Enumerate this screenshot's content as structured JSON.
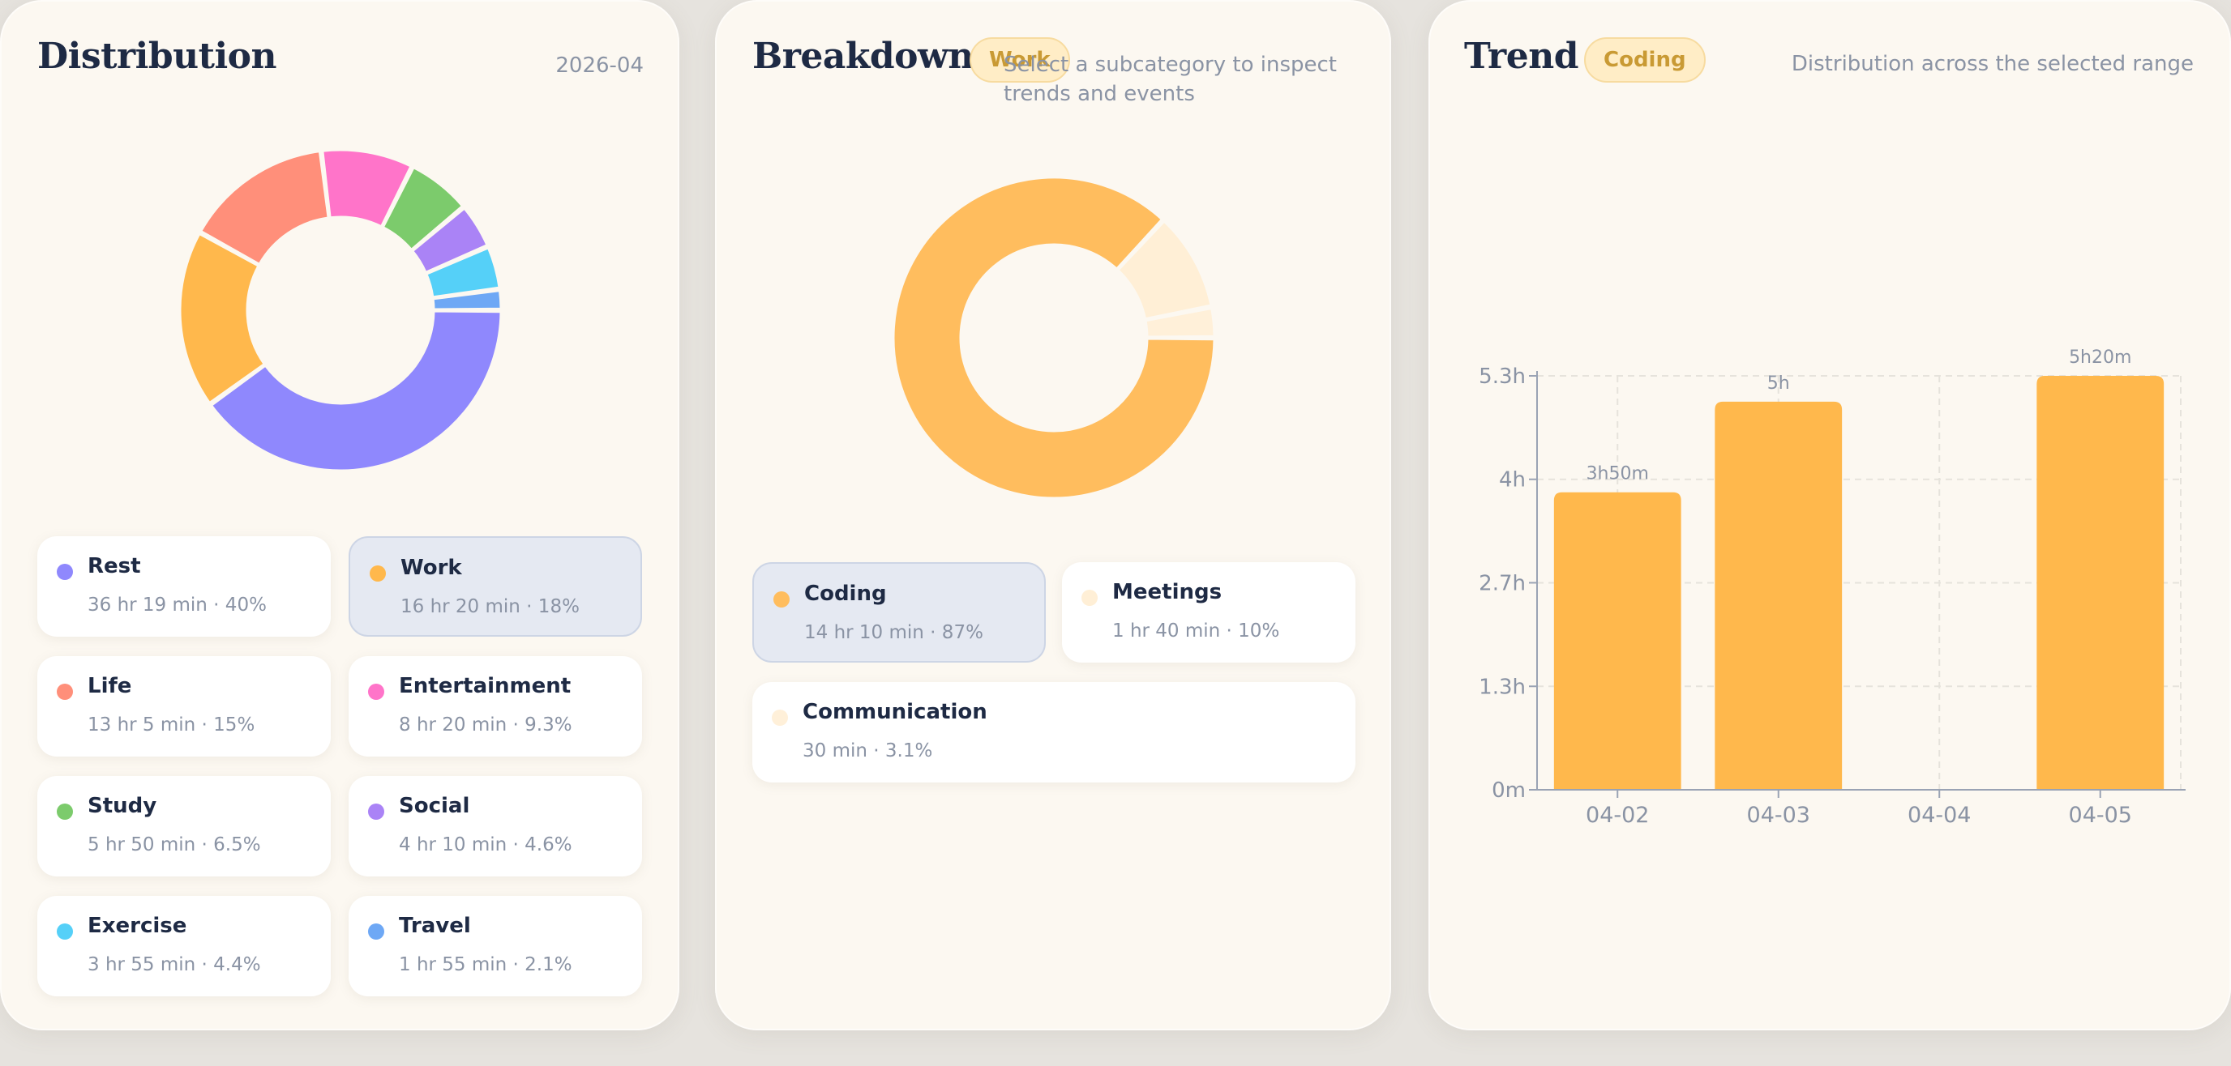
{
  "distribution": {
    "title": "Distribution",
    "period": "2026-04",
    "categories": [
      {
        "name": "Rest",
        "value": "36 hr 19 min · 40%",
        "share": 0.4,
        "color": "#8f88fd"
      },
      {
        "name": "Work",
        "value": "16 hr 20 min · 18%",
        "share": 0.18,
        "color": "#ffb84c",
        "selected": true
      },
      {
        "name": "Life",
        "value": "13 hr 5 min · 15%",
        "share": 0.15,
        "color": "#ff8f7a"
      },
      {
        "name": "Entertainment",
        "value": "8 hr 20 min · 9.3%",
        "share": 0.093,
        "color": "#ff74c9"
      },
      {
        "name": "Study",
        "value": "5 hr 50 min · 6.5%",
        "share": 0.065,
        "color": "#7ccb6c"
      },
      {
        "name": "Social",
        "value": "4 hr 10 min · 4.6%",
        "share": 0.046,
        "color": "#aa83f6"
      },
      {
        "name": "Exercise",
        "value": "3 hr 55 min · 4.4%",
        "share": 0.044,
        "color": "#55d0f8"
      },
      {
        "name": "Travel",
        "value": "1 hr 55 min · 2.1%",
        "share": 0.021,
        "color": "#6ea8f5"
      }
    ]
  },
  "breakdown": {
    "title": "Breakdown",
    "badge": "Work",
    "hint": "Select a subcategory to inspect trends and events",
    "subcategories": [
      {
        "name": "Coding",
        "value": "14 hr 10 min · 87%",
        "share": 0.87,
        "color": "#ffbd5e",
        "selected": true
      },
      {
        "name": "Meetings",
        "value": "1 hr 40 min · 10%",
        "share": 0.1,
        "color": "#ffefd6"
      },
      {
        "name": "Communication",
        "value": "30 min · 3.1%",
        "share": 0.031,
        "color": "#fff0d9"
      }
    ]
  },
  "trend": {
    "title": "Trend",
    "badge": "Coding",
    "caption": "Distribution across the selected range"
  },
  "chart_data": {
    "type": "bar",
    "categories": [
      "04-02",
      "04-03",
      "04-04",
      "04-05"
    ],
    "values_hours": [
      3.833,
      5.0,
      0,
      5.333
    ],
    "data_labels": [
      "3h50m",
      "5h",
      "",
      "5h20m"
    ],
    "yticks": [
      "0m",
      "1.3h",
      "2.7h",
      "4h",
      "5.3h"
    ],
    "ytick_values": [
      0,
      1.333,
      2.667,
      4.0,
      5.333
    ],
    "ylim": [
      0,
      5.333
    ],
    "grid": true,
    "bar_color": "#ffb84c"
  }
}
